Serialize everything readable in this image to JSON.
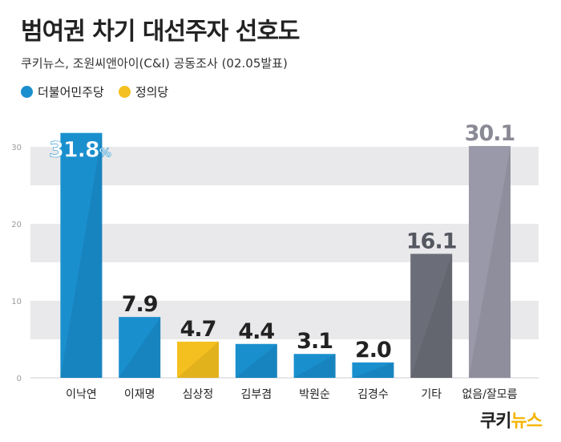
{
  "header": {
    "title": "범여권 차기 대선주자 선호도",
    "subtitle": "쿠키뉴스, 조원씨앤아이(C&I) 공동조사 (02.05발표)"
  },
  "legend": [
    {
      "label": "더불어민주당",
      "color": "#1a8fce"
    },
    {
      "label": "정의당",
      "color": "#f4c020"
    }
  ],
  "logo": {
    "part1": "쿠키",
    "part2": "뉴스"
  },
  "colors": {
    "democratic": "#1a8fce",
    "justice": "#f4c020",
    "other": "#6b6e78",
    "none": "#9a99a9",
    "band": "#e9e9eb"
  },
  "chart_data": {
    "type": "bar",
    "categories": [
      "이낙연",
      "이재명",
      "심상정",
      "김부겸",
      "박원순",
      "김경수",
      "기타",
      "없음/잘모름"
    ],
    "values": [
      31.8,
      7.9,
      4.7,
      4.4,
      3.1,
      2.0,
      16.1,
      30.1
    ],
    "value_labels": [
      "31.8",
      "7.9",
      "4.7",
      "4.4",
      "3.1",
      "2.0",
      "16.1",
      "30.1"
    ],
    "value_suffix_first": "%",
    "bar_groups": [
      "democratic",
      "democratic",
      "justice",
      "democratic",
      "democratic",
      "democratic",
      "other",
      "none"
    ],
    "yticks": [
      "0",
      "10",
      "20",
      "30"
    ],
    "ylim": [
      0,
      30
    ],
    "grid": "horizontal bands"
  }
}
